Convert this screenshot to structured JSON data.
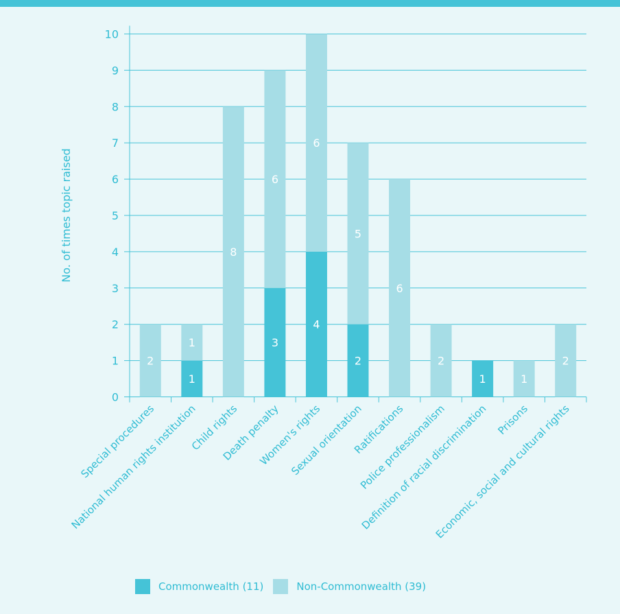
{
  "chart_data": {
    "type": "bar",
    "stacked": true,
    "ylabel": "No. of times topic raised",
    "ylim": [
      0,
      10
    ],
    "yticks": [
      0,
      1,
      2,
      3,
      4,
      5,
      6,
      7,
      8,
      9,
      10
    ],
    "grid": true,
    "legend_position": "bottom",
    "categories": [
      "Special procedures",
      "National human rights institution",
      "Child rights",
      "Death penalty",
      "Women's rights",
      "Sexual orientation",
      "Ratifications",
      "Police professionalism",
      "Definition of racial discrimination",
      "Prisons",
      "Economic, social and cultural rights"
    ],
    "series": [
      {
        "name": "Commonwealth (11)",
        "color": "#45c3d7",
        "values": [
          0,
          1,
          0,
          3,
          4,
          2,
          0,
          0,
          1,
          0,
          0
        ]
      },
      {
        "name": "Non-Commonwealth (39)",
        "color": "#a6dde6",
        "values": [
          2,
          1,
          8,
          6,
          6,
          5,
          6,
          2,
          0,
          1,
          2
        ]
      }
    ]
  },
  "colors": {
    "axis": "#45c3d7",
    "text": "#30bcd3",
    "background": "#e9f7f9"
  }
}
